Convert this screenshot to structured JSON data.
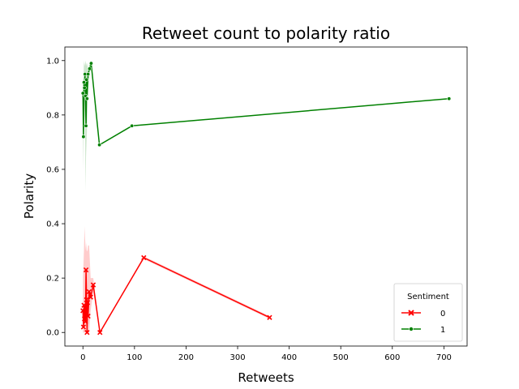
{
  "chart_data": {
    "type": "line",
    "title": "Retweet count to polarity ratio",
    "xlabel": "Retweets",
    "ylabel": "Polarity",
    "xlim": [
      -35,
      745
    ],
    "ylim": [
      -0.05,
      1.05
    ],
    "xticks": [
      0,
      100,
      200,
      300,
      400,
      500,
      600,
      700
    ],
    "yticks": [
      0.0,
      0.2,
      0.4,
      0.6,
      0.8,
      1.0
    ],
    "grid": false,
    "legend": {
      "title": "Sentiment",
      "placement": "lower-right"
    },
    "series": [
      {
        "name": "0",
        "color": "#ff0000",
        "marker": "x",
        "x": [
          0,
          1,
          2,
          3,
          4,
          5,
          6,
          7,
          8,
          9,
          10,
          12,
          15,
          20,
          33,
          118,
          362
        ],
        "y": [
          0.08,
          0.02,
          0.1,
          0.05,
          0.09,
          0.04,
          0.23,
          0.12,
          0.0,
          0.11,
          0.06,
          0.15,
          0.13,
          0.175,
          0.0,
          0.275,
          0.055
        ],
        "ci_upper": [
          0.2,
          0.25,
          0.3,
          0.39,
          0.35,
          0.32,
          0.3,
          0.33,
          0.3,
          0.3,
          0.32,
          0.32,
          0.2,
          0.2,
          0.0,
          0.28,
          0.06
        ],
        "ci_lower": [
          0.0,
          0.0,
          0.0,
          0.0,
          0.0,
          0.0,
          0.05,
          0.0,
          0.0,
          0.0,
          0.0,
          0.0,
          0.08,
          0.15,
          0.0,
          0.27,
          0.05
        ]
      },
      {
        "name": "1",
        "color": "#008000",
        "marker": "o",
        "x": [
          0,
          1,
          2,
          3,
          4,
          5,
          6,
          7,
          8,
          10,
          13,
          16,
          32,
          95,
          710
        ],
        "y": [
          0.88,
          0.72,
          0.92,
          0.9,
          0.95,
          0.87,
          0.76,
          0.93,
          0.86,
          0.95,
          0.97,
          0.99,
          0.69,
          0.76,
          0.86
        ],
        "ci_upper": [
          0.95,
          0.92,
          1.0,
          0.98,
          0.99,
          1.0,
          0.98,
          0.99,
          0.99,
          0.97,
          0.99,
          1.0,
          0.69,
          0.76,
          0.86
        ],
        "ci_lower": [
          0.75,
          0.6,
          0.85,
          0.78,
          0.82,
          0.52,
          0.65,
          0.7,
          0.75,
          0.9,
          0.95,
          0.98,
          0.69,
          0.76,
          0.86
        ]
      }
    ]
  }
}
